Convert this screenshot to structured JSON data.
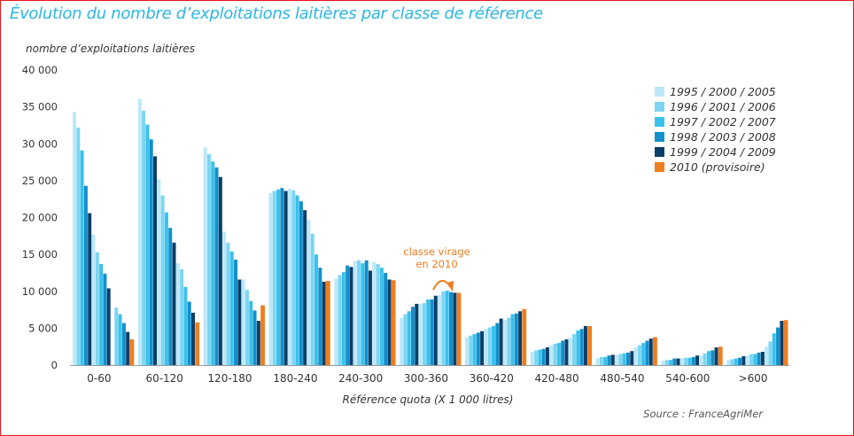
{
  "title": "Évolution du nombre d’exploitations laitières par classe de référence",
  "colors": {
    "title": "#2bb6e4",
    "axis_text": "#333333",
    "annotation": "#f07d1e",
    "frame": "#e8141b",
    "gridline": "#cccccc"
  },
  "chart_data": {
    "type": "bar",
    "ylabel": "nombre d’exploitations laitières",
    "xlabel": "Référence quota (X 1 000 litres)",
    "source": "Source : FranceAgriMer",
    "ylim": [
      0,
      40000
    ],
    "yticks": [
      0,
      5000,
      10000,
      15000,
      20000,
      25000,
      30000,
      35000,
      40000
    ],
    "ytick_labels": [
      "0",
      "5 000",
      "10 000",
      "15 000",
      "20 000",
      "25 000",
      "30 000",
      "35 000",
      "40 000"
    ],
    "grid": false,
    "legend_position": "top-right",
    "categories": [
      "0-60",
      "60-120",
      "120-180",
      "180-240",
      "240-300",
      "300-360",
      "360-420",
      "420-480",
      "480-540",
      "540-600",
      ">600"
    ],
    "series": [
      {
        "name": "1995 / 2000 / 2005",
        "color": "#bce8f8",
        "groups": [
          [
            34300,
            17700,
            null
          ],
          [
            36100,
            25200,
            13800
          ],
          [
            29500,
            18100,
            11600
          ],
          [
            23300,
            23900,
            19700
          ],
          [
            11700,
            14100,
            14000
          ],
          [
            6400,
            8300,
            9500
          ],
          [
            3800,
            4900,
            6100
          ],
          [
            1800,
            2700,
            3700
          ],
          [
            900,
            1400,
            2400
          ],
          [
            600,
            900,
            1300
          ],
          [
            700,
            1300,
            2500
          ]
        ]
      },
      {
        "name": "1996 / 2001 / 2006",
        "color": "#7cd5f2",
        "groups": [
          [
            32200,
            15300,
            7800
          ],
          [
            34500,
            23000,
            13000
          ],
          [
            28600,
            16600,
            10200
          ],
          [
            23600,
            23700,
            17800
          ],
          [
            12200,
            14200,
            13700
          ],
          [
            6900,
            8400,
            10000
          ],
          [
            4000,
            5100,
            6400
          ],
          [
            2000,
            2900,
            4200
          ],
          [
            1100,
            1500,
            2700
          ],
          [
            700,
            1000,
            1600
          ],
          [
            800,
            1500,
            3200
          ]
        ]
      },
      {
        "name": "1997 / 2002 / 2007",
        "color": "#3ac1ec",
        "groups": [
          [
            29100,
            13700,
            6900
          ],
          [
            32600,
            20700,
            10600
          ],
          [
            27600,
            15400,
            8700
          ],
          [
            23800,
            23000,
            15000
          ],
          [
            12600,
            13800,
            13200
          ],
          [
            7300,
            8900,
            10100
          ],
          [
            4200,
            5300,
            6900
          ],
          [
            2100,
            3000,
            4700
          ],
          [
            1100,
            1600,
            3000
          ],
          [
            700,
            1000,
            1900
          ],
          [
            900,
            1500,
            4300
          ]
        ]
      },
      {
        "name": "1998 / 2003 / 2008",
        "color": "#138fcb",
        "groups": [
          [
            24300,
            12400,
            5700
          ],
          [
            30600,
            18600,
            8600
          ],
          [
            26800,
            14300,
            7400
          ],
          [
            24000,
            22200,
            13200
          ],
          [
            13500,
            14200,
            12500
          ],
          [
            7900,
            8900,
            9900
          ],
          [
            4400,
            5700,
            7000
          ],
          [
            2200,
            3300,
            4900
          ],
          [
            1300,
            1700,
            3300
          ],
          [
            900,
            1100,
            2000
          ],
          [
            1000,
            1700,
            5100
          ]
        ]
      },
      {
        "name": "1999 / 2004 / 2009",
        "color": "#0a3f6a",
        "groups": [
          [
            20600,
            10400,
            4500
          ],
          [
            28300,
            16600,
            7100
          ],
          [
            25500,
            11600,
            6000
          ],
          [
            23600,
            21000,
            11300
          ],
          [
            13300,
            12800,
            11600
          ],
          [
            8300,
            9400,
            9800
          ],
          [
            4600,
            6300,
            7300
          ],
          [
            2400,
            3500,
            5300
          ],
          [
            1400,
            1900,
            3600
          ],
          [
            900,
            1300,
            2400
          ],
          [
            1200,
            1800,
            6000
          ]
        ]
      },
      {
        "name": "2010 (provisoire)",
        "color": "#f07d1e",
        "values": [
          3500,
          5800,
          8100,
          11400,
          11500,
          9800,
          7600,
          5300,
          3800,
          2500,
          6100
        ]
      }
    ],
    "annotations": [
      {
        "text": "classe virage",
        "category": "300-360",
        "color": "#f07d1e"
      },
      {
        "text": "en 2010",
        "category": "300-360",
        "color": "#f07d1e"
      }
    ]
  }
}
